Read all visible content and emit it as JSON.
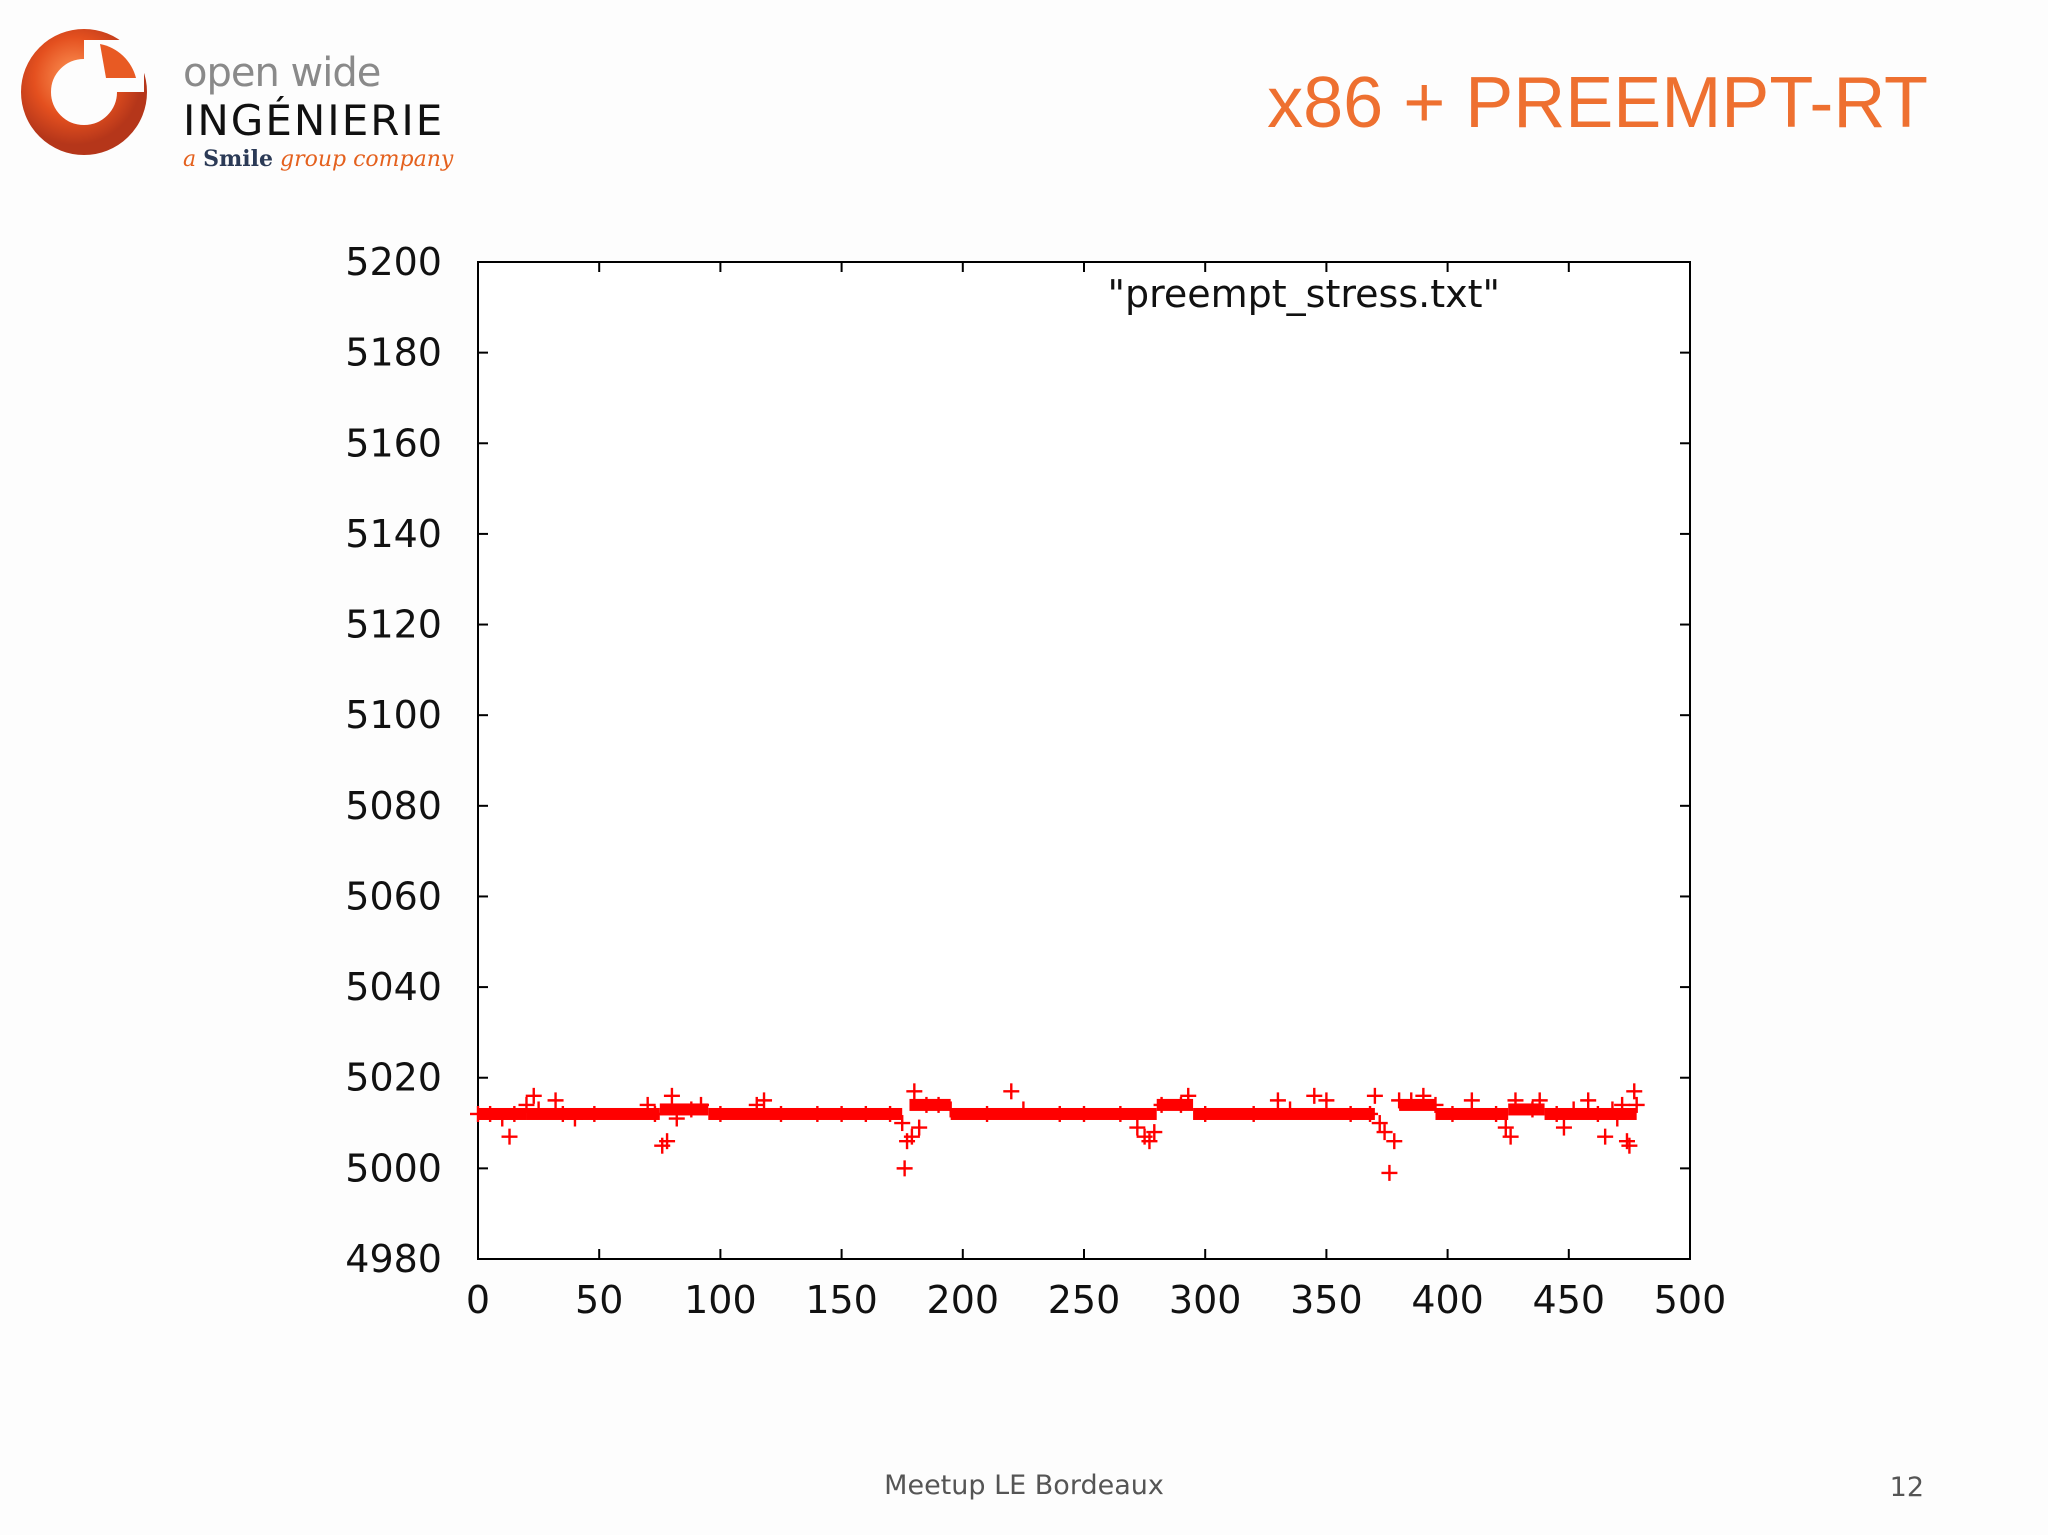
{
  "logo": {
    "line1": "open wide",
    "line2": "INGÉNIERIE",
    "tag_prefix": "a",
    "tag_brand": "Smile",
    "tag_suffix": "group company",
    "colors": {
      "ring": "#e4501f",
      "text_gray": "#8a8a8a"
    }
  },
  "slide": {
    "title": "x86 + PREEMPT-RT",
    "footer": "Meetup LE Bordeaux",
    "page_number": "12",
    "title_color": "#ee7030"
  },
  "chart_data": {
    "type": "scatter",
    "marker": "plus",
    "color": "#ff0000",
    "legend": "\"preempt_stress.txt\"",
    "legend_placement": "top-right",
    "grid": false,
    "xlim": [
      0,
      500
    ],
    "ylim": [
      4980,
      5200
    ],
    "xticks": [
      0,
      50,
      100,
      150,
      200,
      250,
      300,
      350,
      400,
      450,
      500
    ],
    "yticks": [
      4980,
      5000,
      5020,
      5040,
      5060,
      5080,
      5100,
      5120,
      5140,
      5160,
      5180,
      5200
    ],
    "baseline_segments": [
      {
        "x": [
          0,
          20
        ],
        "y": 5012
      },
      {
        "x": [
          20,
          75
        ],
        "y": 5012
      },
      {
        "x": [
          75,
          95
        ],
        "y": 5013
      },
      {
        "x": [
          95,
          175
        ],
        "y": 5012
      },
      {
        "x": [
          178,
          195
        ],
        "y": 5014
      },
      {
        "x": [
          195,
          280
        ],
        "y": 5012
      },
      {
        "x": [
          280,
          295
        ],
        "y": 5014
      },
      {
        "x": [
          295,
          370
        ],
        "y": 5012
      },
      {
        "x": [
          380,
          395
        ],
        "y": 5014
      },
      {
        "x": [
          395,
          425
        ],
        "y": 5012
      },
      {
        "x": [
          425,
          440
        ],
        "y": 5013
      },
      {
        "x": [
          440,
          478
        ],
        "y": 5012
      }
    ],
    "points": [
      [
        0,
        5012
      ],
      [
        5,
        5012
      ],
      [
        10,
        5011
      ],
      [
        13,
        5007
      ],
      [
        15,
        5012
      ],
      [
        20,
        5014
      ],
      [
        23,
        5016
      ],
      [
        25,
        5013
      ],
      [
        32,
        5015
      ],
      [
        35,
        5012
      ],
      [
        40,
        5011
      ],
      [
        48,
        5012
      ],
      [
        70,
        5014
      ],
      [
        73,
        5012
      ],
      [
        76,
        5005
      ],
      [
        78,
        5006
      ],
      [
        80,
        5016
      ],
      [
        82,
        5011
      ],
      [
        88,
        5013
      ],
      [
        92,
        5014
      ],
      [
        100,
        5012
      ],
      [
        115,
        5014
      ],
      [
        118,
        5015
      ],
      [
        125,
        5012
      ],
      [
        140,
        5012
      ],
      [
        150,
        5012
      ],
      [
        160,
        5012
      ],
      [
        170,
        5012
      ],
      [
        175,
        5010
      ],
      [
        176,
        5000
      ],
      [
        177,
        5006
      ],
      [
        179,
        5007
      ],
      [
        180,
        5017
      ],
      [
        182,
        5009
      ],
      [
        185,
        5014
      ],
      [
        190,
        5014
      ],
      [
        195,
        5013
      ],
      [
        210,
        5012
      ],
      [
        220,
        5017
      ],
      [
        225,
        5013
      ],
      [
        240,
        5012
      ],
      [
        250,
        5012
      ],
      [
        265,
        5012
      ],
      [
        272,
        5009
      ],
      [
        275,
        5007
      ],
      [
        277,
        5006
      ],
      [
        279,
        5008
      ],
      [
        282,
        5014
      ],
      [
        290,
        5014
      ],
      [
        293,
        5016
      ],
      [
        300,
        5012
      ],
      [
        320,
        5012
      ],
      [
        330,
        5015
      ],
      [
        335,
        5013
      ],
      [
        345,
        5016
      ],
      [
        350,
        5015
      ],
      [
        360,
        5012
      ],
      [
        368,
        5012
      ],
      [
        370,
        5016
      ],
      [
        372,
        5010
      ],
      [
        374,
        5008
      ],
      [
        376,
        4999
      ],
      [
        378,
        5006
      ],
      [
        380,
        5015
      ],
      [
        385,
        5015
      ],
      [
        390,
        5016
      ],
      [
        395,
        5014
      ],
      [
        402,
        5012
      ],
      [
        410,
        5015
      ],
      [
        420,
        5012
      ],
      [
        424,
        5009
      ],
      [
        426,
        5007
      ],
      [
        428,
        5015
      ],
      [
        435,
        5013
      ],
      [
        438,
        5015
      ],
      [
        445,
        5012
      ],
      [
        448,
        5009
      ],
      [
        452,
        5013
      ],
      [
        458,
        5015
      ],
      [
        462,
        5012
      ],
      [
        465,
        5007
      ],
      [
        468,
        5013
      ],
      [
        470,
        5011
      ],
      [
        472,
        5014
      ],
      [
        474,
        5006
      ],
      [
        475,
        5005
      ],
      [
        477,
        5017
      ],
      [
        478,
        5014
      ]
    ]
  }
}
